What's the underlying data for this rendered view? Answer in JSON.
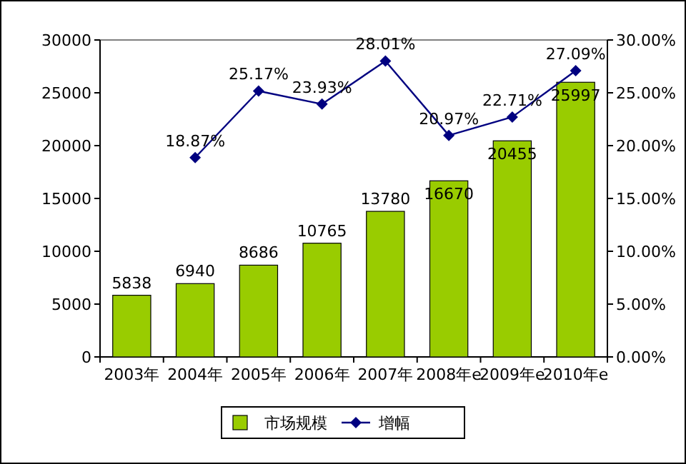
{
  "chart_data": {
    "type": "bar",
    "categories": [
      "2003年",
      "2004年",
      "2005年",
      "2006年",
      "2007年",
      "2008年e",
      "2009年e",
      "2010年e"
    ],
    "series": [
      {
        "name": "市场规模",
        "type": "bar",
        "color": "#99cc00",
        "values": [
          5838,
          6940,
          8686,
          10765,
          13780,
          16670,
          20455,
          25997
        ],
        "value_labels": [
          "5838",
          "6940",
          "8686",
          "10765",
          "13780",
          "16670",
          "20455",
          "25997"
        ]
      },
      {
        "name": "增幅",
        "type": "line",
        "axis": "y2",
        "color": "#000080",
        "marker": "diamond",
        "values": [
          null,
          18.87,
          25.17,
          23.93,
          28.01,
          20.97,
          22.71,
          27.09
        ],
        "value_labels": [
          null,
          "18.87%",
          "25.17%",
          "23.93%",
          "28.01%",
          "20.97%",
          "22.71%",
          "27.09%"
        ]
      }
    ],
    "ylim": [
      0,
      30000
    ],
    "yticks": [
      0,
      5000,
      10000,
      15000,
      20000,
      25000,
      30000
    ],
    "y2lim": [
      0,
      30
    ],
    "y2ticks": [
      {
        "value": 0,
        "label": "0.00%"
      },
      {
        "value": 5,
        "label": "5.00%"
      },
      {
        "value": 10,
        "label": "10.00%"
      },
      {
        "value": 15,
        "label": "15.00%"
      },
      {
        "value": 20,
        "label": "20.00%"
      },
      {
        "value": 25,
        "label": "25.00%"
      },
      {
        "value": 30,
        "label": "30.00%"
      }
    ],
    "grid": false,
    "legend": "bottom"
  }
}
